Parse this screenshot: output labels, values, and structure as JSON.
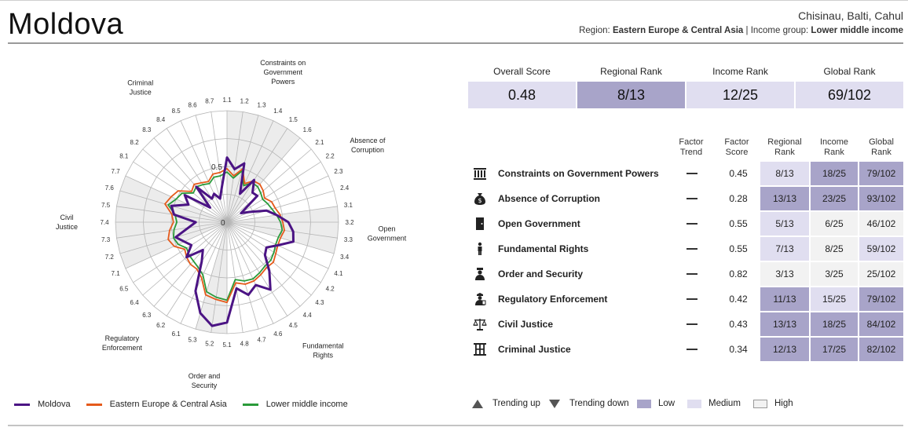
{
  "header": {
    "country": "Moldova",
    "cities": "Chisinau, Balti, Cahul",
    "region_label": "Region:",
    "region": "Eastern Europe & Central Asia",
    "income_label": "| Income group:",
    "income": "Lower middle income"
  },
  "colors": {
    "moldova": "#4b1484",
    "region": "#e55a1b",
    "income": "#2a9a3a",
    "low": "#a8a4c9",
    "medium": "#e0def0",
    "high": "#f2f2f2"
  },
  "summary": [
    {
      "label": "Overall Score",
      "value": "0.48",
      "level": "medium"
    },
    {
      "label": "Regional Rank",
      "value": "8/13",
      "level": "low"
    },
    {
      "label": "Income Rank",
      "value": "12/25",
      "level": "medium"
    },
    {
      "label": "Global Rank",
      "value": "69/102",
      "level": "medium"
    }
  ],
  "table": {
    "headers": {
      "trend": "Factor Trend",
      "score": "Factor Score",
      "regional": "Regional Rank",
      "income": "Income Rank",
      "global": "Global Rank"
    },
    "rows": [
      {
        "icon": "columns-icon",
        "name": "Constraints on Government Powers",
        "trend": "—",
        "score": "0.45",
        "regional": "8/13",
        "regional_level": "medium",
        "income": "18/25",
        "income_level": "low",
        "global": "79/102",
        "global_level": "low"
      },
      {
        "icon": "money-bag-icon",
        "name": "Absence of Corruption",
        "trend": "—",
        "score": "0.28",
        "regional": "13/13",
        "regional_level": "low",
        "income": "23/25",
        "income_level": "low",
        "global": "93/102",
        "global_level": "low"
      },
      {
        "icon": "door-icon",
        "name": "Open Government",
        "trend": "—",
        "score": "0.55",
        "regional": "5/13",
        "regional_level": "medium",
        "income": "6/25",
        "income_level": "high",
        "global": "46/102",
        "global_level": "high"
      },
      {
        "icon": "person-icon",
        "name": "Fundamental Rights",
        "trend": "—",
        "score": "0.55",
        "regional": "7/13",
        "regional_level": "medium",
        "income": "8/25",
        "income_level": "high",
        "global": "59/102",
        "global_level": "medium"
      },
      {
        "icon": "police-icon",
        "name": "Order and Security",
        "trend": "—",
        "score": "0.82",
        "regional": "3/13",
        "regional_level": "high",
        "income": "3/25",
        "income_level": "high",
        "global": "25/102",
        "global_level": "high"
      },
      {
        "icon": "inspector-icon",
        "name": "Regulatory Enforcement",
        "trend": "—",
        "score": "0.42",
        "regional": "11/13",
        "regional_level": "low",
        "income": "15/25",
        "income_level": "medium",
        "global": "79/102",
        "global_level": "low"
      },
      {
        "icon": "scales-icon",
        "name": "Civil Justice",
        "trend": "—",
        "score": "0.43",
        "regional": "13/13",
        "regional_level": "low",
        "income": "18/25",
        "income_level": "low",
        "global": "84/102",
        "global_level": "low"
      },
      {
        "icon": "prison-icon",
        "name": "Criminal Justice",
        "trend": "—",
        "score": "0.34",
        "regional": "12/13",
        "regional_level": "low",
        "income": "17/25",
        "income_level": "low",
        "global": "82/102",
        "global_level": "low"
      }
    ]
  },
  "table_legend": {
    "up": "Trending up",
    "down": "Trending down",
    "low": "Low",
    "medium": "Medium",
    "high": "High"
  },
  "chart_data": {
    "type": "radar",
    "rmin": 0,
    "rmax": 1,
    "rings": 4,
    "ring_labels": [
      "0",
      "0.5"
    ],
    "axes": [
      "1.1",
      "1.2",
      "1.3",
      "1.4",
      "1.5",
      "1.6",
      "2.1",
      "2.2",
      "2.3",
      "2.4",
      "3.1",
      "3.2",
      "3.3",
      "3.4",
      "4.1",
      "4.2",
      "4.3",
      "4.4",
      "4.5",
      "4.6",
      "4.7",
      "4.8",
      "5.1",
      "5.2",
      "5.3",
      "6.1",
      "6.2",
      "6.3",
      "6.4",
      "6.5",
      "7.1",
      "7.2",
      "7.3",
      "7.4",
      "7.5",
      "7.6",
      "7.7",
      "8.1",
      "8.2",
      "8.3",
      "8.4",
      "8.5",
      "8.6",
      "8.7"
    ],
    "factor_labels": [
      {
        "text": "Constraints on Government Powers",
        "axes": [
          "1.1",
          "1.6"
        ]
      },
      {
        "text": "Absence of Corruption",
        "axes": [
          "2.1",
          "2.4"
        ]
      },
      {
        "text": "Open Government",
        "axes": [
          "3.1",
          "3.4"
        ]
      },
      {
        "text": "Fundamental Rights",
        "axes": [
          "4.1",
          "4.8"
        ]
      },
      {
        "text": "Order and Security",
        "axes": [
          "5.1",
          "5.3"
        ]
      },
      {
        "text": "Regulatory Enforcement",
        "axes": [
          "6.1",
          "6.5"
        ]
      },
      {
        "text": "Civil Justice",
        "axes": [
          "7.1",
          "7.7"
        ]
      },
      {
        "text": "Criminal Justice",
        "axes": [
          "8.1",
          "8.7"
        ]
      }
    ],
    "series": [
      {
        "name": "Moldova",
        "color": "#4b1484",
        "values": [
          0.58,
          0.48,
          0.55,
          0.28,
          0.45,
          0.35,
          0.36,
          0.15,
          0.22,
          0.37,
          0.45,
          0.55,
          0.6,
          0.62,
          0.5,
          0.42,
          0.45,
          0.58,
          0.72,
          0.62,
          0.68,
          0.6,
          0.9,
          0.94,
          0.85,
          0.68,
          0.42,
          0.33,
          0.48,
          0.38,
          0.42,
          0.48,
          0.35,
          0.28,
          0.48,
          0.52,
          0.38,
          0.45,
          0.2,
          0.42,
          0.25,
          0.28,
          0.22,
          0.32
        ]
      },
      {
        "name": "Eastern Europe & Central Asia",
        "color": "#e55a1b",
        "values": [
          0.48,
          0.42,
          0.5,
          0.38,
          0.44,
          0.45,
          0.43,
          0.4,
          0.44,
          0.45,
          0.48,
          0.5,
          0.52,
          0.5,
          0.5,
          0.52,
          0.55,
          0.54,
          0.56,
          0.58,
          0.58,
          0.55,
          0.72,
          0.7,
          0.68,
          0.55,
          0.5,
          0.5,
          0.48,
          0.45,
          0.52,
          0.55,
          0.52,
          0.48,
          0.5,
          0.58,
          0.55,
          0.52,
          0.42,
          0.45,
          0.42,
          0.4,
          0.45,
          0.45
        ]
      },
      {
        "name": "Lower middle income",
        "color": "#2a9a3a",
        "values": [
          0.45,
          0.4,
          0.48,
          0.36,
          0.42,
          0.42,
          0.4,
          0.38,
          0.4,
          0.42,
          0.45,
          0.48,
          0.5,
          0.48,
          0.48,
          0.5,
          0.52,
          0.52,
          0.54,
          0.56,
          0.55,
          0.52,
          0.7,
          0.68,
          0.65,
          0.52,
          0.48,
          0.46,
          0.45,
          0.43,
          0.48,
          0.5,
          0.48,
          0.45,
          0.47,
          0.55,
          0.5,
          0.48,
          0.4,
          0.42,
          0.4,
          0.38,
          0.42,
          0.42
        ]
      }
    ],
    "legend_position": "bottom-left"
  }
}
